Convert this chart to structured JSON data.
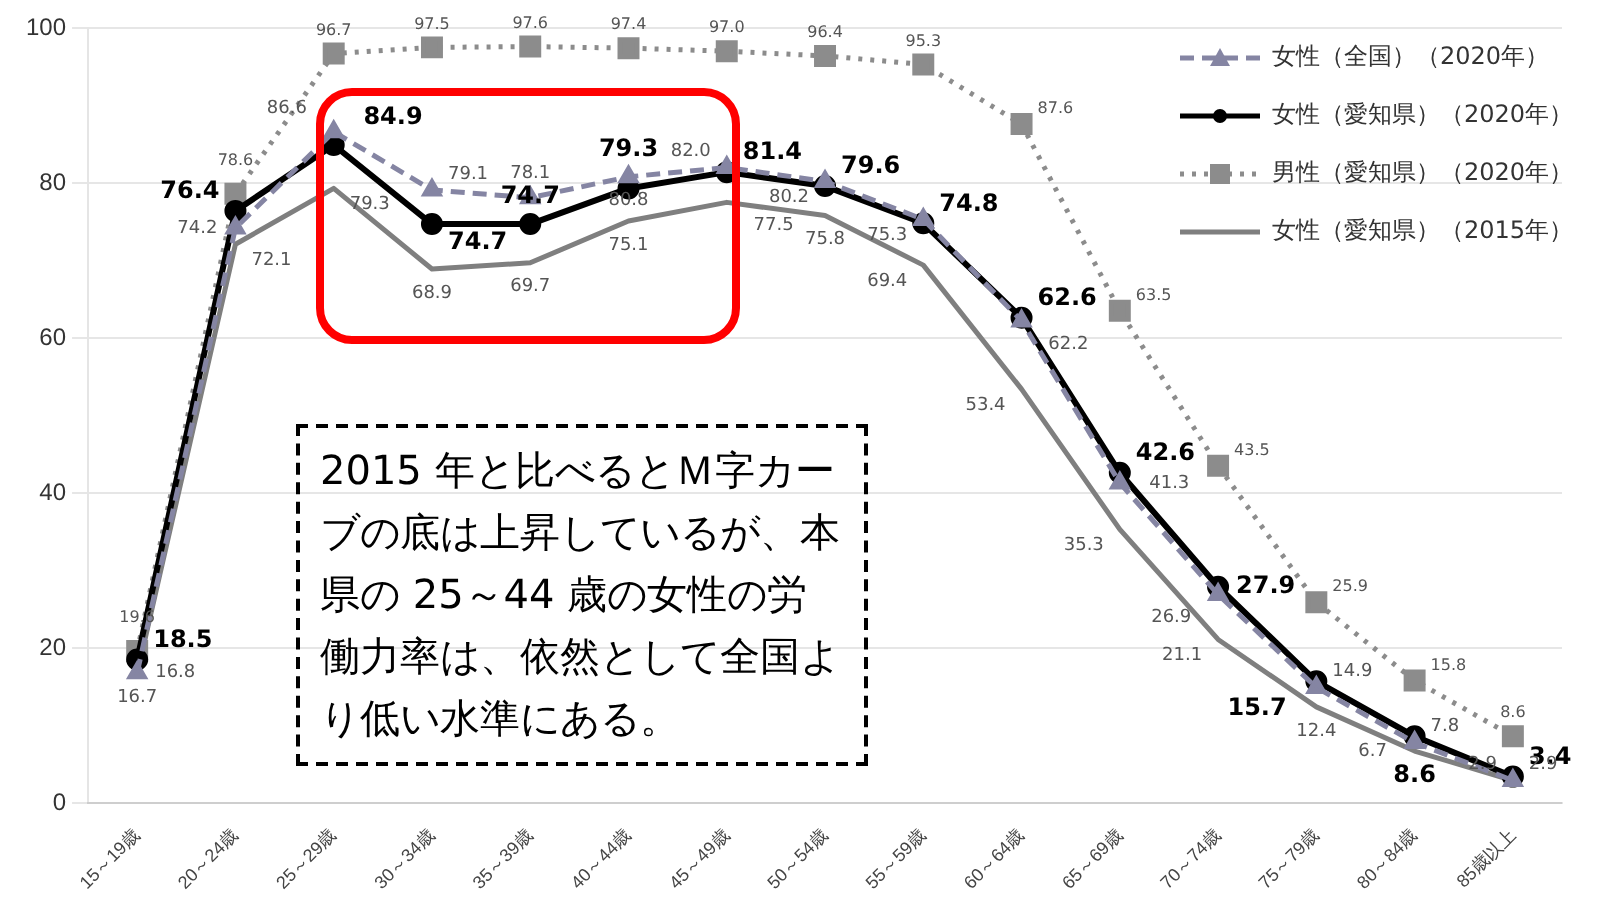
{
  "chart_data": {
    "type": "line",
    "categories": [
      "15～19歳",
      "20～24歳",
      "25～29歳",
      "30～34歳",
      "35～39歳",
      "40～44歳",
      "45～49歳",
      "50～54歳",
      "55～59歳",
      "60～64歳",
      "65～69歳",
      "70～74歳",
      "75～79歳",
      "80～84歳",
      "85歳以上"
    ],
    "series": [
      {
        "name": "女性（全国）（2020年）",
        "color": "#8585a3",
        "marker": "triangle",
        "line_style": "dashed",
        "values": [
          16.8,
          74.2,
          86.6,
          79.1,
          78.1,
          80.8,
          82.0,
          80.2,
          75.3,
          62.2,
          41.3,
          26.9,
          14.9,
          7.8,
          2.9
        ],
        "value_labels": [
          "16.8",
          "74.2",
          "86.6",
          "79.1",
          "78.1",
          "80.8",
          "82.0",
          "80.2",
          "75.3",
          "62.2",
          "41.3",
          "26.9",
          "14.9",
          "7.8",
          "2.9"
        ]
      },
      {
        "name": "女性（愛知県）（2020年）",
        "color": "#000000",
        "marker": "circle",
        "line_style": "solid",
        "values": [
          18.5,
          76.4,
          84.9,
          74.7,
          74.7,
          79.3,
          81.4,
          79.6,
          74.8,
          62.6,
          42.6,
          27.9,
          15.7,
          8.6,
          3.4
        ],
        "value_labels": [
          "18.5",
          "76.4",
          "84.9",
          "74.7",
          "74.7",
          "79.3",
          "81.4",
          "79.6",
          "74.8",
          "62.6",
          "42.6",
          "27.9",
          "15.7",
          "8.6",
          "3.4"
        ]
      },
      {
        "name": "男性（愛知県）（2020年）",
        "color": "#8c8c8c",
        "marker": "square",
        "line_style": "dotted",
        "values": [
          19.6,
          78.6,
          96.7,
          97.5,
          97.6,
          97.4,
          97.0,
          96.4,
          95.3,
          87.6,
          63.5,
          43.5,
          25.9,
          15.8,
          8.6
        ],
        "value_labels": [
          "19.6",
          "78.6",
          "96.7",
          "97.5",
          "97.6",
          "97.4",
          "97.0",
          "96.4",
          "95.3",
          "87.6",
          "63.5",
          "43.5",
          "25.9",
          "15.8",
          "8.6"
        ]
      },
      {
        "name": "女性（愛知県）（2015年）",
        "color": "#7f7f7f",
        "marker": "none",
        "line_style": "solid",
        "values": [
          16.7,
          72.1,
          79.3,
          68.9,
          69.7,
          75.1,
          77.5,
          75.8,
          69.4,
          53.4,
          35.3,
          21.1,
          12.4,
          6.7,
          2.9
        ],
        "value_labels": [
          "16.7",
          "72.1",
          "79.3",
          "68.9",
          "69.7",
          "75.1",
          "77.5",
          "75.8",
          "69.4",
          "53.4",
          "35.3",
          "21.1",
          "12.4",
          "6.7",
          "2.9"
        ]
      }
    ],
    "ylim": [
      0,
      100
    ],
    "yticks": [
      0,
      20,
      40,
      60,
      80,
      100
    ],
    "grid": "y",
    "legend": "top right",
    "annotations": [
      "2015 年と比べるとＭ字カーブの底は上昇しているが、本県の 25～44 歳の女性の労働力率は、依然として全国より低い水準にある。"
    ]
  }
}
